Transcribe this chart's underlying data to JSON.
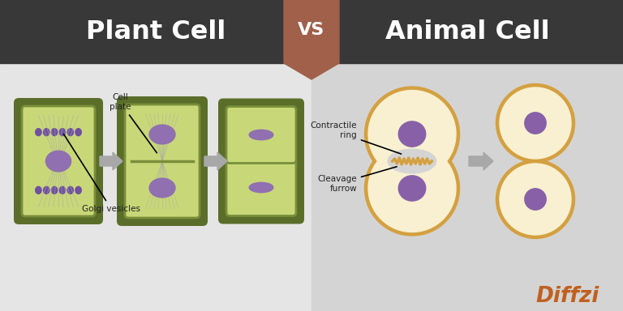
{
  "title_left": "Plant Cell",
  "title_right": "Animal Cell",
  "vs_text": "VS",
  "header_bg_color": "#383838",
  "vs_bg_color": "#a0604a",
  "left_bg_color": "#e5e5e5",
  "right_bg_color": "#d4d4d4",
  "plant_wall_outer_color": "#5a6e2a",
  "plant_wall_inner_color": "#7a8e3a",
  "plant_cell_fill_color": "#c8d878",
  "plant_nucleus_color": "#9070b0",
  "plant_chromatin_color": "#7050a0",
  "plant_spindle_color": "#aaaaaa",
  "animal_outer_color": "#d4a040",
  "animal_fill_color": "#f8f0d0",
  "animal_nucleus_color": "#8860a8",
  "arrow_color": "#a8a8a8",
  "annotation_color": "#222222",
  "diffzi_d_color": "#c06020",
  "diffzi_rest_color": "#c06020"
}
